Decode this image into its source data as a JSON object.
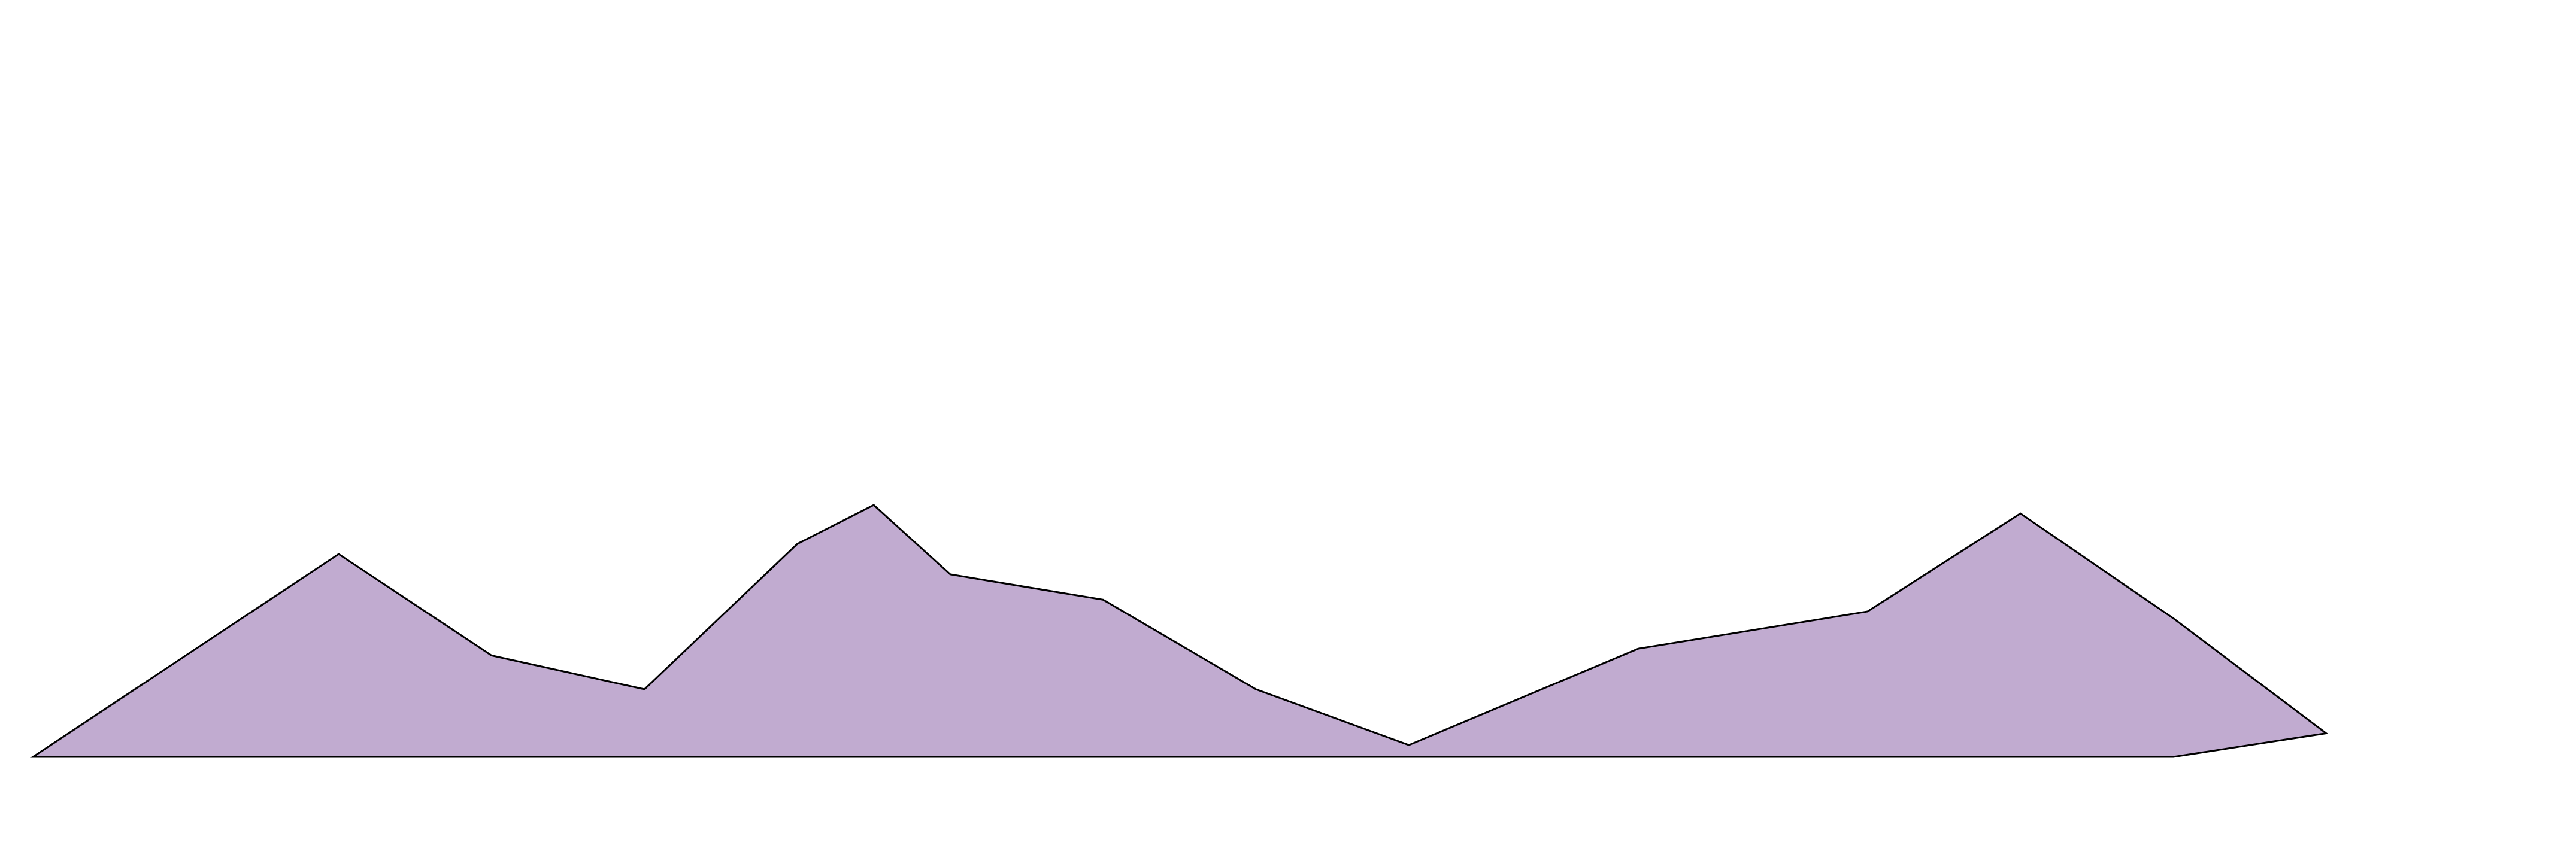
{
  "chart_data": {
    "type": "area",
    "title": "",
    "xlabel": "",
    "ylabel": "",
    "grid": false,
    "legend": "none",
    "x": [
      0,
      1,
      2,
      3,
      4,
      5,
      6,
      7,
      8,
      9,
      10,
      11,
      12,
      13,
      14,
      15,
      16
    ],
    "xlim": [
      0,
      16
    ],
    "ylim": [
      0,
      1
    ],
    "colors": {
      "fill": "#c1abd0",
      "stroke": "#000000"
    },
    "series": [
      {
        "upper": [
          0,
          0.36,
          0.6,
          0.3,
          0.2,
          0.66,
          0.78,
          0.57,
          0.5,
          0.2,
          0.035,
          0.19,
          0.43,
          0.74,
          0.43,
          0.07,
          null
        ],
        "lower": [
          0,
          0,
          0,
          0,
          0,
          0,
          0,
          0,
          0,
          0,
          0,
          0,
          0,
          0,
          0,
          0,
          null
        ],
        "upper_x": [
          0,
          1,
          2,
          3,
          4,
          5,
          5.5,
          6,
          7,
          8,
          9,
          10.5,
          12,
          13,
          14,
          15
        ],
        "upper_y": [
          0,
          0.3,
          0.6,
          0.3,
          0.2,
          0.63,
          0.745,
          0.54,
          0.465,
          0.2,
          0.035,
          0.32,
          0.43,
          0.72,
          0.41,
          0.07
        ],
        "lower_x": [
          0,
          14,
          15
        ],
        "lower_y": [
          0,
          0,
          0.07
        ]
      }
    ]
  }
}
